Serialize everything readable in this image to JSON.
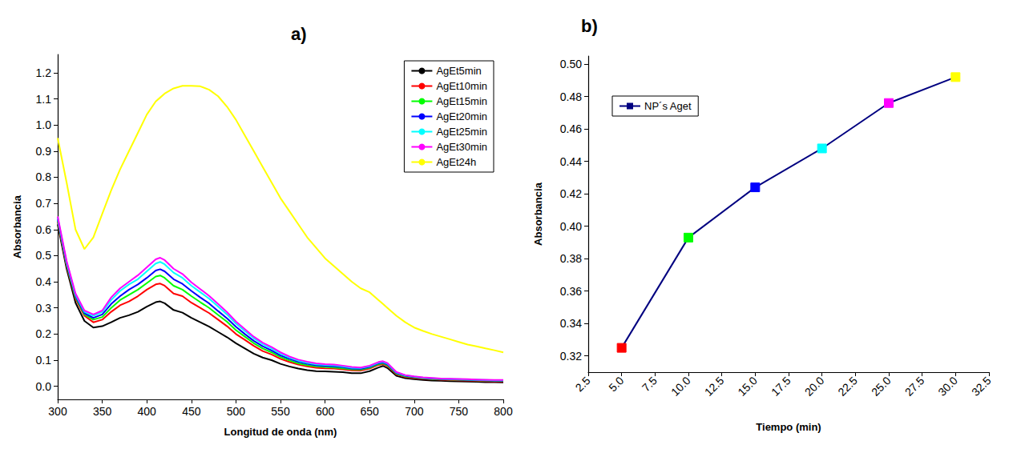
{
  "chart_data": [
    {
      "type": "line",
      "title": "a)",
      "x_label": "Longitud de onda (nm)",
      "y_label": "Absorbancia",
      "x": [
        300,
        310,
        320,
        330,
        340,
        350,
        360,
        370,
        380,
        390,
        400,
        410,
        415,
        420,
        430,
        440,
        450,
        460,
        470,
        480,
        490,
        500,
        510,
        520,
        530,
        540,
        550,
        560,
        570,
        580,
        590,
        600,
        610,
        620,
        630,
        640,
        650,
        660,
        665,
        670,
        680,
        690,
        700,
        710,
        720,
        730,
        740,
        750,
        760,
        770,
        780,
        790,
        800
      ],
      "series": [
        {
          "name": "AgEt5min",
          "color": "#000000",
          "values": [
            0.62,
            0.45,
            0.32,
            0.25,
            0.225,
            0.23,
            0.245,
            0.262,
            0.272,
            0.285,
            0.305,
            0.322,
            0.325,
            0.318,
            0.292,
            0.282,
            0.262,
            0.245,
            0.228,
            0.208,
            0.188,
            0.165,
            0.145,
            0.125,
            0.11,
            0.1,
            0.086,
            0.076,
            0.068,
            0.062,
            0.058,
            0.057,
            0.056,
            0.054,
            0.05,
            0.05,
            0.058,
            0.072,
            0.078,
            0.07,
            0.04,
            0.031,
            0.027,
            0.024,
            0.022,
            0.021,
            0.02,
            0.019,
            0.018,
            0.017,
            0.016,
            0.016,
            0.015
          ]
        },
        {
          "name": "AgEt10min",
          "color": "#ff0000",
          "values": [
            0.63,
            0.46,
            0.335,
            0.27,
            0.245,
            0.255,
            0.285,
            0.31,
            0.325,
            0.345,
            0.37,
            0.39,
            0.393,
            0.385,
            0.355,
            0.345,
            0.32,
            0.3,
            0.28,
            0.255,
            0.23,
            0.2,
            0.178,
            0.155,
            0.135,
            0.122,
            0.105,
            0.093,
            0.083,
            0.076,
            0.071,
            0.069,
            0.068,
            0.065,
            0.061,
            0.06,
            0.068,
            0.082,
            0.085,
            0.078,
            0.046,
            0.036,
            0.032,
            0.029,
            0.027,
            0.025,
            0.024,
            0.023,
            0.022,
            0.021,
            0.02,
            0.019,
            0.019
          ]
        },
        {
          "name": "AgEt15min",
          "color": "#00ff00",
          "values": [
            0.635,
            0.465,
            0.34,
            0.275,
            0.255,
            0.265,
            0.3,
            0.33,
            0.35,
            0.37,
            0.395,
            0.42,
            0.424,
            0.415,
            0.385,
            0.37,
            0.345,
            0.322,
            0.3,
            0.273,
            0.247,
            0.215,
            0.19,
            0.165,
            0.145,
            0.13,
            0.112,
            0.099,
            0.088,
            0.081,
            0.076,
            0.074,
            0.072,
            0.069,
            0.065,
            0.064,
            0.071,
            0.085,
            0.088,
            0.081,
            0.049,
            0.038,
            0.034,
            0.031,
            0.028,
            0.027,
            0.026,
            0.025,
            0.024,
            0.023,
            0.022,
            0.021,
            0.021
          ]
        },
        {
          "name": "AgEt20min",
          "color": "#0000ff",
          "values": [
            0.64,
            0.47,
            0.345,
            0.28,
            0.262,
            0.275,
            0.315,
            0.345,
            0.37,
            0.39,
            0.415,
            0.443,
            0.448,
            0.44,
            0.41,
            0.392,
            0.365,
            0.34,
            0.317,
            0.288,
            0.26,
            0.228,
            0.2,
            0.174,
            0.153,
            0.137,
            0.118,
            0.105,
            0.094,
            0.086,
            0.08,
            0.078,
            0.076,
            0.073,
            0.068,
            0.067,
            0.074,
            0.088,
            0.091,
            0.084,
            0.051,
            0.04,
            0.036,
            0.032,
            0.03,
            0.028,
            0.027,
            0.026,
            0.025,
            0.024,
            0.023,
            0.022,
            0.022
          ]
        },
        {
          "name": "AgEt25min",
          "color": "#00ffff",
          "values": [
            0.645,
            0.475,
            0.35,
            0.285,
            0.27,
            0.285,
            0.33,
            0.365,
            0.39,
            0.41,
            0.44,
            0.47,
            0.476,
            0.467,
            0.435,
            0.415,
            0.385,
            0.36,
            0.335,
            0.305,
            0.275,
            0.24,
            0.212,
            0.184,
            0.162,
            0.145,
            0.125,
            0.11,
            0.098,
            0.09,
            0.084,
            0.082,
            0.08,
            0.076,
            0.071,
            0.07,
            0.077,
            0.091,
            0.094,
            0.087,
            0.053,
            0.042,
            0.037,
            0.033,
            0.031,
            0.029,
            0.028,
            0.027,
            0.026,
            0.025,
            0.024,
            0.023,
            0.023
          ]
        },
        {
          "name": "AgEt30min",
          "color": "#ff00ff",
          "values": [
            0.65,
            0.48,
            0.355,
            0.29,
            0.275,
            0.29,
            0.34,
            0.375,
            0.4,
            0.425,
            0.455,
            0.486,
            0.492,
            0.483,
            0.45,
            0.43,
            0.398,
            0.372,
            0.346,
            0.315,
            0.284,
            0.248,
            0.219,
            0.19,
            0.167,
            0.15,
            0.13,
            0.114,
            0.102,
            0.094,
            0.088,
            0.085,
            0.083,
            0.079,
            0.074,
            0.072,
            0.079,
            0.093,
            0.096,
            0.089,
            0.055,
            0.043,
            0.038,
            0.034,
            0.032,
            0.03,
            0.029,
            0.028,
            0.027,
            0.026,
            0.025,
            0.024,
            0.024
          ]
        },
        {
          "name": "AgEt24h",
          "color": "#ffff00",
          "values": [
            0.95,
            0.78,
            0.6,
            0.525,
            0.57,
            0.66,
            0.75,
            0.83,
            0.9,
            0.97,
            1.04,
            1.09,
            1.105,
            1.12,
            1.14,
            1.15,
            1.15,
            1.148,
            1.135,
            1.11,
            1.07,
            1.02,
            0.96,
            0.9,
            0.84,
            0.78,
            0.72,
            0.67,
            0.62,
            0.57,
            0.53,
            0.49,
            0.46,
            0.43,
            0.4,
            0.375,
            0.36,
            0.33,
            0.315,
            0.3,
            0.27,
            0.245,
            0.225,
            0.212,
            0.2,
            0.19,
            0.18,
            0.17,
            0.16,
            0.153,
            0.145,
            0.138,
            0.13
          ]
        }
      ],
      "xlim": [
        300,
        800
      ],
      "xticks": [
        300,
        350,
        400,
        450,
        500,
        550,
        600,
        650,
        700,
        750,
        800
      ],
      "ylim": [
        -0.05,
        1.27
      ],
      "yticks": [
        {
          "value": 0,
          "label": "0.0"
        },
        0.1,
        0.2,
        0.3,
        0.4,
        0.5,
        0.6,
        0.7,
        0.8,
        0.9,
        {
          "value": 1,
          "label": "1.0"
        },
        1.1,
        1.2
      ],
      "grid": false,
      "legend": "upper right",
      "marker": "none"
    },
    {
      "type": "line",
      "title": "b)",
      "x_label": "Tiempo (min)",
      "y_label": "Absorbancia",
      "x": [
        5,
        10,
        15,
        20,
        25,
        30
      ],
      "series": [
        {
          "name": "NP´s Aget",
          "color": "#000080",
          "colors": [
            "#ff0000",
            "#00ff00",
            "#0000ff",
            "#00ffff",
            "#ff00ff",
            "#ffff00"
          ],
          "values": [
            0.325,
            0.393,
            0.424,
            0.448,
            0.476,
            0.492
          ]
        }
      ],
      "xlim": [
        2.5,
        32.5
      ],
      "xticks": [
        2.5,
        {
          "value": 5,
          "label": "5.0"
        },
        7.5,
        {
          "value": 10,
          "label": "10.0"
        },
        12.5,
        {
          "value": 15,
          "label": "15.0"
        },
        17.5,
        {
          "value": 20,
          "label": "20.0"
        },
        22.5,
        {
          "value": 25,
          "label": "25.0"
        },
        27.5,
        {
          "value": 30,
          "label": "30.0"
        },
        32.5
      ],
      "ylim": [
        0.31,
        0.505
      ],
      "yticks": [
        0.32,
        0.34,
        0.36,
        0.38,
        {
          "value": 0.4,
          "label": "0.40"
        },
        0.42,
        0.44,
        0.46,
        0.48,
        {
          "value": 0.5,
          "label": "0.50"
        }
      ],
      "grid": false,
      "legend": "upper left",
      "marker": "square"
    }
  ]
}
